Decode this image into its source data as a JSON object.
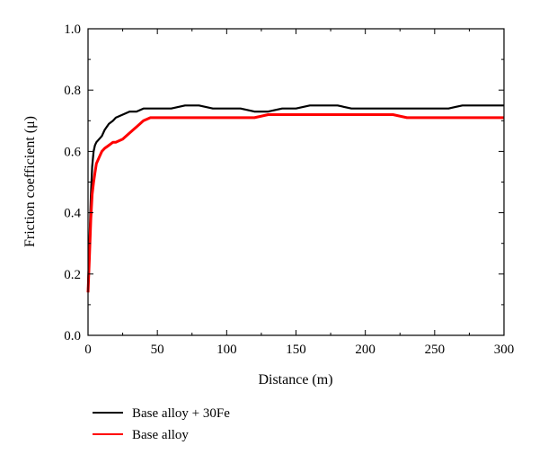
{
  "chart_data": {
    "type": "line",
    "title": "",
    "xlabel": "Distance (m)",
    "ylabel": "Friction coefficient (μ)",
    "xlim": [
      0,
      300
    ],
    "ylim": [
      0,
      1.0
    ],
    "xticks": [
      0,
      50,
      100,
      150,
      200,
      250,
      300
    ],
    "xtick_labels": [
      "0",
      "50",
      "100",
      "150",
      "200",
      "250",
      "300"
    ],
    "yticks": [
      0,
      0.2,
      0.4,
      0.6,
      0.8,
      1.0
    ],
    "ytick_labels": [
      "0.0",
      "0.2",
      "0.4",
      "0.6",
      "0.8",
      "1.0"
    ],
    "grid": false,
    "legend_position": "bottom-left (below plot)",
    "series": [
      {
        "name": "Base alloy + 30Fe",
        "color": "#000000",
        "x": [
          0,
          1,
          2,
          3,
          4,
          5,
          6,
          8,
          10,
          12,
          15,
          18,
          20,
          25,
          30,
          35,
          40,
          45,
          50,
          55,
          60,
          70,
          80,
          90,
          100,
          110,
          120,
          130,
          140,
          150,
          160,
          170,
          180,
          190,
          200,
          210,
          220,
          230,
          240,
          250,
          260,
          270,
          280,
          290,
          300
        ],
        "y": [
          0.15,
          0.3,
          0.45,
          0.55,
          0.6,
          0.62,
          0.63,
          0.64,
          0.65,
          0.67,
          0.69,
          0.7,
          0.71,
          0.72,
          0.73,
          0.73,
          0.74,
          0.74,
          0.74,
          0.74,
          0.74,
          0.75,
          0.75,
          0.74,
          0.74,
          0.74,
          0.73,
          0.73,
          0.74,
          0.74,
          0.75,
          0.75,
          0.75,
          0.74,
          0.74,
          0.74,
          0.74,
          0.74,
          0.74,
          0.74,
          0.74,
          0.75,
          0.75,
          0.75,
          0.75
        ]
      },
      {
        "name": "Base alloy",
        "color": "#ff0000",
        "x": [
          0,
          1,
          2,
          3,
          4,
          5,
          6,
          8,
          10,
          12,
          15,
          18,
          20,
          25,
          30,
          35,
          40,
          45,
          50,
          55,
          60,
          70,
          80,
          90,
          100,
          110,
          120,
          130,
          140,
          150,
          160,
          170,
          180,
          190,
          200,
          210,
          220,
          230,
          240,
          250,
          260,
          270,
          280,
          290,
          300
        ],
        "y": [
          0.14,
          0.25,
          0.38,
          0.46,
          0.5,
          0.53,
          0.56,
          0.58,
          0.6,
          0.61,
          0.62,
          0.63,
          0.63,
          0.64,
          0.66,
          0.68,
          0.7,
          0.71,
          0.71,
          0.71,
          0.71,
          0.71,
          0.71,
          0.71,
          0.71,
          0.71,
          0.71,
          0.72,
          0.72,
          0.72,
          0.72,
          0.72,
          0.72,
          0.72,
          0.72,
          0.72,
          0.72,
          0.71,
          0.71,
          0.71,
          0.71,
          0.71,
          0.71,
          0.71,
          0.71
        ]
      }
    ]
  }
}
